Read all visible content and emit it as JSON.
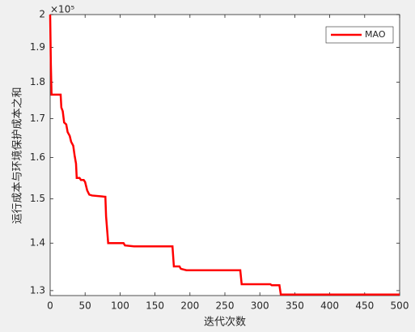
{
  "chart_data": {
    "type": "line",
    "xlabel": "迭代次数",
    "ylabel": "运行成本与环境保护成本之和",
    "y_exponent_label": "×10⁵",
    "x": [
      0,
      1,
      2,
      15,
      16,
      18,
      20,
      23,
      25,
      28,
      30,
      33,
      35,
      37,
      38,
      42,
      44,
      48,
      50,
      53,
      56,
      60,
      79,
      80,
      82,
      83,
      105,
      107,
      120,
      175,
      177,
      185,
      187,
      195,
      272,
      274,
      315,
      317,
      328,
      330,
      500
    ],
    "series": [
      {
        "name": "MAO",
        "color": "#ff0000",
        "values": [
          2.0,
          1.85,
          1.765,
          1.765,
          1.73,
          1.72,
          1.69,
          1.685,
          1.665,
          1.655,
          1.64,
          1.63,
          1.605,
          1.585,
          1.55,
          1.55,
          1.545,
          1.545,
          1.54,
          1.52,
          1.51,
          1.508,
          1.505,
          1.46,
          1.42,
          1.4,
          1.4,
          1.395,
          1.393,
          1.393,
          1.35,
          1.35,
          1.345,
          1.342,
          1.342,
          1.313,
          1.313,
          1.311,
          1.311,
          1.292,
          1.292
        ]
      }
    ],
    "xlim": [
      0,
      500
    ],
    "xticks": [
      0,
      50,
      100,
      150,
      200,
      250,
      300,
      350,
      400,
      450,
      500
    ],
    "ylim": [
      1.29,
      2.0
    ],
    "yticks": [
      1.3,
      1.4,
      1.5,
      1.6,
      1.7,
      1.8,
      1.9,
      2
    ],
    "yscale": "log",
    "legend": "upper right",
    "grid": false
  }
}
